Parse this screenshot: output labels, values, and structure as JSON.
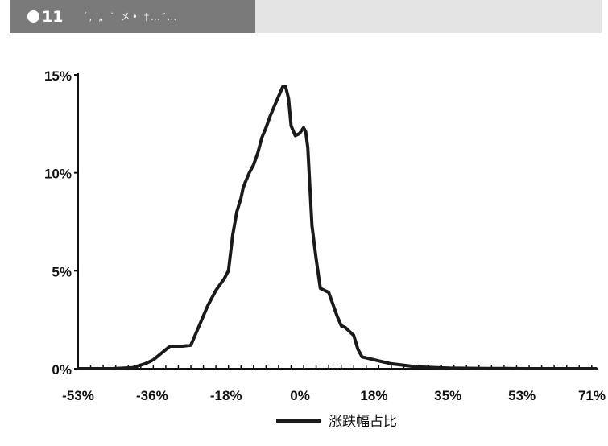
{
  "header": {
    "figure_number": "11",
    "title": "´, „ ˙ 㐅• †…″…"
  },
  "chart_data": {
    "type": "line",
    "title": "",
    "xlabel": "",
    "ylabel": "",
    "x_ticks": [
      "-53%",
      "-36%",
      "-18%",
      "0%",
      "18%",
      "35%",
      "53%",
      "71%"
    ],
    "y_ticks": [
      "0%",
      "5%",
      "10%",
      "15%"
    ],
    "ylim": [
      0,
      15
    ],
    "xlim": [
      -53,
      71
    ],
    "grid": false,
    "legend_position": "bottom-center",
    "series": [
      {
        "name": "涨跌幅占比",
        "color": "#1a1a1a",
        "x": [
          -53,
          -50,
          -45,
          -40,
          -37,
          -35,
          -33,
          -31,
          -30,
          -28,
          -26,
          -25,
          -24,
          -23,
          -22,
          -21,
          -20,
          -19,
          -18,
          -17,
          -16,
          -15,
          -14,
          -13.5,
          -13,
          -12,
          -11,
          -10,
          -9,
          -8,
          -7,
          -6,
          -5,
          -4,
          -3.3,
          -2.6,
          -2,
          -1,
          0,
          1,
          1.5,
          2,
          3,
          4,
          5,
          6,
          7,
          8,
          9,
          10,
          11,
          12,
          13,
          14,
          15,
          16,
          17,
          18,
          19,
          20,
          21,
          22,
          24,
          26,
          28,
          30,
          33,
          36,
          40,
          45,
          50,
          55,
          60,
          65,
          71
        ],
        "values": [
          0,
          0,
          0,
          0.05,
          0.25,
          0.45,
          0.8,
          1.15,
          1.15,
          1.15,
          1.2,
          1.7,
          2.2,
          2.7,
          3.2,
          3.6,
          4.0,
          4.3,
          4.6,
          5.0,
          6.8,
          8.0,
          8.7,
          9.2,
          9.5,
          10.0,
          10.4,
          11.0,
          11.8,
          12.3,
          12.9,
          13.4,
          13.9,
          14.4,
          14.4,
          13.8,
          12.4,
          11.9,
          12.0,
          12.3,
          12.1,
          11.3,
          7.3,
          5.6,
          4.1,
          4.0,
          3.9,
          3.3,
          2.7,
          2.2,
          2.1,
          1.9,
          1.7,
          1.0,
          0.6,
          0.55,
          0.5,
          0.45,
          0.4,
          0.35,
          0.3,
          0.25,
          0.2,
          0.15,
          0.1,
          0.08,
          0.05,
          0.03,
          0.02,
          0.01,
          0.01,
          0,
          0,
          0,
          0
        ]
      }
    ]
  }
}
